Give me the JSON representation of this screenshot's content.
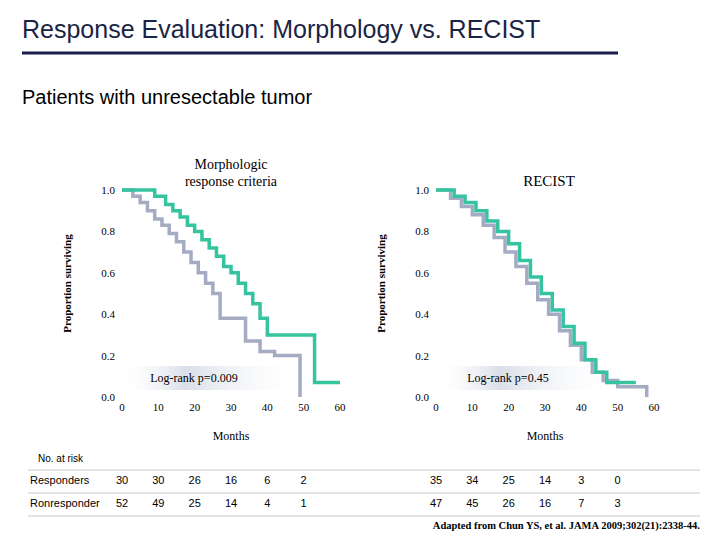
{
  "slide": {
    "title": "Response Evaluation: Morphology vs. RECIST",
    "subtitle": "Patients with unresectable tumor",
    "at_risk_label": "No. at risk",
    "source": "Adapted from Chun YS, et al. JAMA 2009;302(21):2338-44."
  },
  "chart_data": [
    {
      "type": "line",
      "title": "Morphologic response criteria",
      "x_label": "Months",
      "y_label": "Proportion surviving",
      "annotation": "Log-rank p=0.009",
      "line_style": "step",
      "xlim": [
        0,
        60
      ],
      "ylim": [
        0,
        1
      ],
      "xticks": [
        0,
        10,
        20,
        30,
        40,
        50,
        60
      ],
      "yticks": [
        {
          "value": 0,
          "label": "0.0"
        },
        0.2,
        0.4,
        0.6,
        0.8,
        {
          "value": 1,
          "label": "1.0"
        }
      ],
      "series": [
        {
          "name": "Responders",
          "color": "#35c3a0",
          "x": [
            0,
            9,
            12,
            14,
            16,
            18,
            20,
            22,
            24,
            26,
            28,
            30,
            32,
            34,
            36,
            38,
            40,
            53,
            60
          ],
          "values": [
            1,
            0.97,
            0.93,
            0.9,
            0.87,
            0.83,
            0.8,
            0.76,
            0.72,
            0.68,
            0.63,
            0.6,
            0.55,
            0.5,
            0.45,
            0.38,
            0.3,
            0.07,
            0.07
          ],
          "at_risk": [
            30,
            30,
            26,
            16,
            6,
            2
          ]
        },
        {
          "name": "Ronresponder",
          "color": "#a5abc3",
          "x": [
            0,
            3,
            5,
            7,
            9,
            11,
            13,
            15,
            17,
            19,
            21,
            23,
            25,
            27,
            34,
            38,
            42,
            49
          ],
          "values": [
            1,
            0.97,
            0.94,
            0.9,
            0.86,
            0.83,
            0.79,
            0.75,
            0.7,
            0.65,
            0.6,
            0.55,
            0.5,
            0.38,
            0.27,
            0.22,
            0.2,
            0
          ],
          "at_risk": [
            52,
            49,
            25,
            14,
            4,
            1
          ]
        }
      ]
    },
    {
      "type": "line",
      "title": "RECIST",
      "x_label": "Months",
      "y_label": "Proportion surviving",
      "annotation": "Log-rank p=0.45",
      "line_style": "step",
      "xlim": [
        0,
        60
      ],
      "ylim": [
        0,
        1
      ],
      "xticks": [
        0,
        10,
        20,
        30,
        40,
        50,
        60
      ],
      "yticks": [
        {
          "value": 0,
          "label": "0.0"
        },
        0.2,
        0.4,
        0.6,
        0.8,
        {
          "value": 1,
          "label": "1.0"
        }
      ],
      "series": [
        {
          "color": "#35c3a0",
          "x": [
            0,
            5,
            8,
            11,
            14,
            17,
            20,
            23,
            26,
            29,
            32,
            35,
            38,
            41,
            44,
            47,
            55
          ],
          "values": [
            1,
            0.97,
            0.94,
            0.9,
            0.85,
            0.8,
            0.74,
            0.66,
            0.58,
            0.5,
            0.42,
            0.34,
            0.26,
            0.18,
            0.12,
            0.07,
            0.07
          ],
          "at_risk": [
            35,
            34,
            25,
            14,
            3,
            0
          ]
        },
        {
          "color": "#a5abc3",
          "x": [
            0,
            4,
            7,
            10,
            13,
            16,
            19,
            22,
            25,
            28,
            31,
            34,
            37,
            40,
            43,
            46,
            50,
            58
          ],
          "values": [
            1,
            0.96,
            0.92,
            0.88,
            0.83,
            0.77,
            0.7,
            0.63,
            0.55,
            0.47,
            0.4,
            0.32,
            0.25,
            0.18,
            0.12,
            0.08,
            0.05,
            0
          ],
          "at_risk": [
            47,
            45,
            26,
            16,
            7,
            3
          ]
        }
      ]
    }
  ]
}
